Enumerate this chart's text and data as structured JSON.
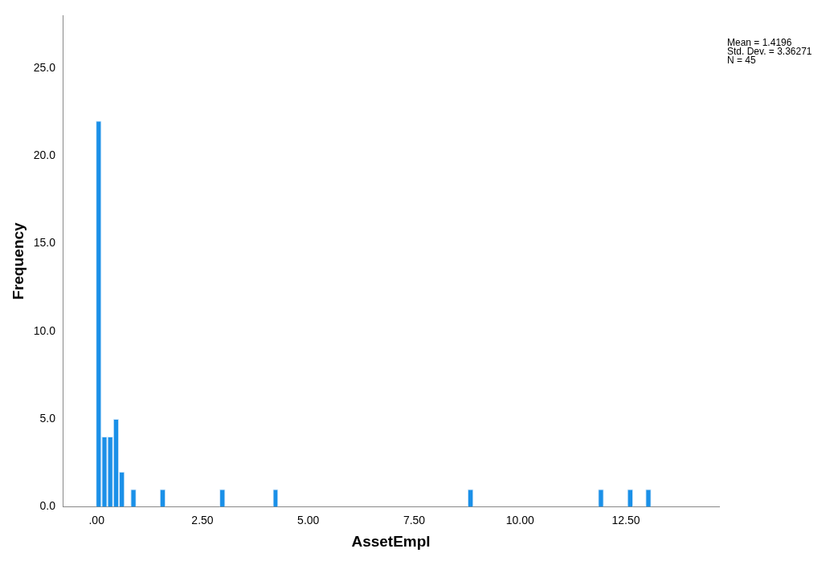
{
  "chart_data": {
    "type": "histogram",
    "xlabel": "AssetEmpl",
    "ylabel": "Frequency",
    "bins": [
      -0.02,
      0.117,
      0.254,
      0.391,
      0.528,
      0.665,
      0.8,
      0.94,
      1.49,
      1.63,
      2.9,
      3.04,
      4.16,
      4.29,
      8.76,
      8.9,
      11.84,
      11.98,
      12.53,
      12.67,
      12.96,
      13.1
    ],
    "values": [
      22,
      4,
      4,
      5,
      2,
      0,
      1,
      0,
      1,
      0,
      1,
      0,
      1,
      0,
      1,
      0,
      1,
      0,
      1,
      0,
      1
    ],
    "color": "#1a90e8",
    "xlim": [
      -0.8,
      14.7
    ],
    "xticks": [
      {
        "value": 0,
        "label": ".00"
      },
      {
        "value": 2.5,
        "label": "2.50"
      },
      {
        "value": 5,
        "label": "5.00"
      },
      {
        "value": 7.5,
        "label": "7.50"
      },
      {
        "value": 10,
        "label": "10.00"
      },
      {
        "value": 12.5,
        "label": "12.50"
      }
    ],
    "ylim": [
      0,
      28
    ],
    "yticks": [
      {
        "value": 0,
        "label": "0.0"
      },
      {
        "value": 5,
        "label": "5.0"
      },
      {
        "value": 10,
        "label": "10.0"
      },
      {
        "value": 15,
        "label": "15.0"
      },
      {
        "value": 20,
        "label": "20.0"
      },
      {
        "value": 25,
        "label": "25.0"
      }
    ],
    "annotations": [
      "Mean = 1.4196",
      "Std. Dev. = 3.36271",
      "N = 45"
    ],
    "grid": false,
    "legend": false
  }
}
